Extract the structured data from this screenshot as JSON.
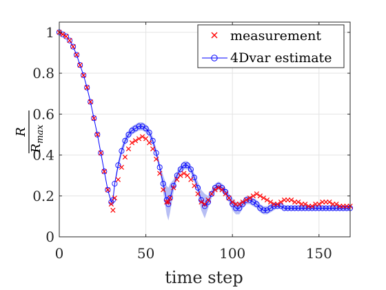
{
  "chart_data": {
    "type": "scatter",
    "xlabel": "time step",
    "ylabel": {
      "numerator": "R",
      "denominator_base": "R",
      "denominator_sub": "max"
    },
    "xlim": [
      0,
      168
    ],
    "ylim": [
      0,
      1.05
    ],
    "xticks": [
      0,
      50,
      100,
      150
    ],
    "yticks": [
      0,
      0.2,
      0.4,
      0.6,
      0.8,
      1
    ],
    "ytick_labels": [
      "0",
      "0.2",
      "0.4",
      "0.6",
      "0.8",
      "1"
    ],
    "xtick_labels": [
      "0",
      "50",
      "100",
      "150"
    ],
    "grid": true,
    "legend_position": "top-right",
    "legend": [
      {
        "label": "measurement",
        "marker": "x",
        "color": "#ff0000"
      },
      {
        "label": "4Dvar estimate",
        "marker": "circle-line",
        "color": "#0000ff"
      }
    ],
    "band_color": "#aab3f2",
    "measurement": {
      "x": [
        0,
        2,
        4,
        6,
        8,
        10,
        12,
        14,
        16,
        18,
        20,
        22,
        24,
        26,
        28,
        30,
        31,
        32,
        34,
        36,
        38,
        40,
        42,
        44,
        46,
        48,
        50,
        52,
        54,
        56,
        58,
        60,
        62,
        63,
        64,
        66,
        68,
        70,
        72,
        74,
        76,
        78,
        80,
        82,
        84,
        86,
        88,
        90,
        92,
        94,
        96,
        98,
        100,
        102,
        104,
        106,
        108,
        110,
        112,
        114,
        116,
        118,
        120,
        122,
        124,
        126,
        128,
        130,
        132,
        134,
        136,
        138,
        140,
        142,
        144,
        146,
        148,
        150,
        152,
        154,
        156,
        158,
        160,
        162,
        164,
        166,
        168
      ],
      "y": [
        1.0,
        0.99,
        0.98,
        0.96,
        0.93,
        0.89,
        0.84,
        0.79,
        0.73,
        0.66,
        0.58,
        0.5,
        0.41,
        0.32,
        0.23,
        0.16,
        0.13,
        0.19,
        0.28,
        0.34,
        0.39,
        0.43,
        0.46,
        0.47,
        0.48,
        0.49,
        0.48,
        0.46,
        0.43,
        0.38,
        0.31,
        0.23,
        0.17,
        0.17,
        0.19,
        0.24,
        0.28,
        0.3,
        0.31,
        0.3,
        0.28,
        0.25,
        0.21,
        0.17,
        0.16,
        0.18,
        0.21,
        0.23,
        0.24,
        0.23,
        0.21,
        0.19,
        0.17,
        0.16,
        0.16,
        0.17,
        0.18,
        0.19,
        0.2,
        0.21,
        0.2,
        0.19,
        0.18,
        0.17,
        0.16,
        0.16,
        0.17,
        0.18,
        0.18,
        0.18,
        0.17,
        0.17,
        0.16,
        0.16,
        0.15,
        0.15,
        0.16,
        0.16,
        0.17,
        0.17,
        0.17,
        0.16,
        0.16,
        0.15,
        0.15,
        0.15,
        0.15
      ]
    },
    "estimate": {
      "x": [
        0,
        2,
        4,
        6,
        8,
        10,
        12,
        14,
        16,
        18,
        20,
        22,
        24,
        26,
        28,
        30,
        31,
        32,
        34,
        36,
        38,
        40,
        42,
        44,
        46,
        48,
        50,
        52,
        54,
        56,
        58,
        60,
        62,
        63,
        64,
        66,
        68,
        70,
        72,
        74,
        76,
        78,
        80,
        82,
        84,
        86,
        88,
        90,
        92,
        94,
        96,
        98,
        100,
        102,
        104,
        106,
        108,
        110,
        112,
        114,
        116,
        118,
        120,
        122,
        124,
        126,
        128,
        130,
        132,
        134,
        136,
        138,
        140,
        142,
        144,
        146,
        148,
        150,
        152,
        154,
        156,
        158,
        160,
        162,
        164,
        166,
        168
      ],
      "y": [
        1.0,
        0.99,
        0.98,
        0.96,
        0.93,
        0.89,
        0.84,
        0.79,
        0.73,
        0.66,
        0.58,
        0.5,
        0.41,
        0.32,
        0.23,
        0.17,
        0.18,
        0.26,
        0.35,
        0.42,
        0.47,
        0.5,
        0.52,
        0.53,
        0.54,
        0.54,
        0.53,
        0.51,
        0.47,
        0.41,
        0.34,
        0.26,
        0.18,
        0.16,
        0.19,
        0.25,
        0.3,
        0.33,
        0.35,
        0.35,
        0.33,
        0.29,
        0.24,
        0.18,
        0.15,
        0.17,
        0.21,
        0.24,
        0.25,
        0.24,
        0.22,
        0.19,
        0.16,
        0.14,
        0.14,
        0.16,
        0.18,
        0.18,
        0.17,
        0.16,
        0.14,
        0.13,
        0.13,
        0.14,
        0.15,
        0.15,
        0.15,
        0.14,
        0.14,
        0.14,
        0.14,
        0.14,
        0.14,
        0.14,
        0.14,
        0.14,
        0.14,
        0.14,
        0.14,
        0.14,
        0.14,
        0.14,
        0.14,
        0.14,
        0.14,
        0.14,
        0.14
      ]
    },
    "band_halfwidth": [
      0,
      0,
      0,
      0,
      0,
      0,
      0,
      0,
      0,
      0,
      0,
      0,
      0,
      0,
      0,
      0.01,
      0.01,
      0.01,
      0.02,
      0.02,
      0.02,
      0.02,
      0.02,
      0.02,
      0.02,
      0.02,
      0.02,
      0.02,
      0.02,
      0.02,
      0.02,
      0.04,
      0.07,
      0.08,
      0.07,
      0.03,
      0.02,
      0.02,
      0.02,
      0.02,
      0.02,
      0.02,
      0.03,
      0.05,
      0.06,
      0.03,
      0.02,
      0.02,
      0.02,
      0.02,
      0.02,
      0.02,
      0.03,
      0.03,
      0.03,
      0.02,
      0.02,
      0.02,
      0.02,
      0.02,
      0.02,
      0.02,
      0.02,
      0.02,
      0.02,
      0.01,
      0.01,
      0.01,
      0.01,
      0.01,
      0.01,
      0.01,
      0.01,
      0.01,
      0.01,
      0.01,
      0.01,
      0.01,
      0.01,
      0.01,
      0.01,
      0.01,
      0.01,
      0.01,
      0.01,
      0.01,
      0.01
    ]
  }
}
